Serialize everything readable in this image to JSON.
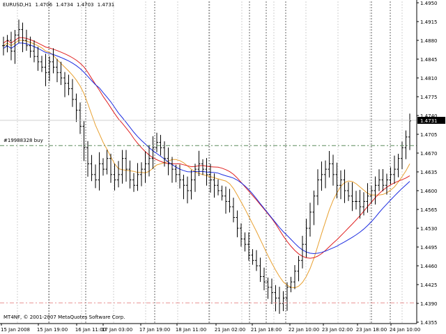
{
  "header": {
    "symbol": "EURUSD,H1",
    "open": "1.4706",
    "high": "1.4734",
    "low": "1.4703",
    "close": "1.4731"
  },
  "order_label": "#19988328 buy",
  "copyright": "MT4NF, © 2001-2007 MetaQuotes Software Corp.",
  "current_price": "1.4731",
  "colors": {
    "background": "#ffffff",
    "candles": "#000000",
    "ma_fast": "#e8a030",
    "ma_mid": "#e02020",
    "ma_slow": "#1c2ce0",
    "order_line": "#5a8a5a",
    "stop_line": "#e89090",
    "grid": "#b0b0b0",
    "separator": "#000000"
  },
  "chart_data": {
    "type": "candlestick",
    "y_ticks": [
      "1.4950",
      "1.4915",
      "1.4880",
      "1.4845",
      "1.4810",
      "1.4775",
      "1.4740",
      "1.4705",
      "1.4670",
      "1.4635",
      "1.4600",
      "1.4565",
      "1.4530",
      "1.4495",
      "1.4460",
      "1.4425",
      "1.4390",
      "1.4355"
    ],
    "x_ticks": [
      "15 Jan 2008",
      "15 Jan 19:00",
      "16 Jan 11:00",
      "17 Jan 03:00",
      "17 Jan 19:00",
      "18 Jan 11:00",
      "21 Jan 02:00",
      "21 Jan 18:00",
      "22 Jan 10:00",
      "23 Jan 02:00",
      "23 Jan 18:00",
      "24 Jan 10:00"
    ],
    "ylim": [
      1.4355,
      1.495
    ],
    "order_price": 1.4684,
    "stop_price": 1.4391,
    "close_series": [
      1.487,
      1.488,
      1.486,
      1.489,
      1.49,
      1.488,
      1.487,
      1.486,
      1.485,
      1.484,
      1.483,
      1.482,
      1.484,
      1.483,
      1.482,
      1.481,
      1.48,
      1.479,
      1.477,
      1.475,
      1.472,
      1.468,
      1.465,
      1.463,
      1.462,
      1.465,
      1.464,
      1.466,
      1.463,
      1.462,
      1.463,
      1.466,
      1.464,
      1.462,
      1.461,
      1.463,
      1.464,
      1.465,
      1.466,
      1.468,
      1.469,
      1.468,
      1.466,
      1.465,
      1.464,
      1.463,
      1.462,
      1.461,
      1.46,
      1.462,
      1.464,
      1.465,
      1.464,
      1.463,
      1.462,
      1.461,
      1.46,
      1.459,
      1.458,
      1.457,
      1.455,
      1.453,
      1.451,
      1.45,
      1.448,
      1.447,
      1.446,
      1.444,
      1.443,
      1.442,
      1.441,
      1.44,
      1.439,
      1.44,
      1.442,
      1.443,
      1.445,
      1.447,
      1.45,
      1.453,
      1.456,
      1.459,
      1.462,
      1.463,
      1.464,
      1.465,
      1.463,
      1.461,
      1.462,
      1.46,
      1.459,
      1.458,
      1.458,
      1.457,
      1.458,
      1.459,
      1.46,
      1.461,
      1.462,
      1.461,
      1.462,
      1.463,
      1.464,
      1.466,
      1.468,
      1.47,
      1.473
    ]
  }
}
